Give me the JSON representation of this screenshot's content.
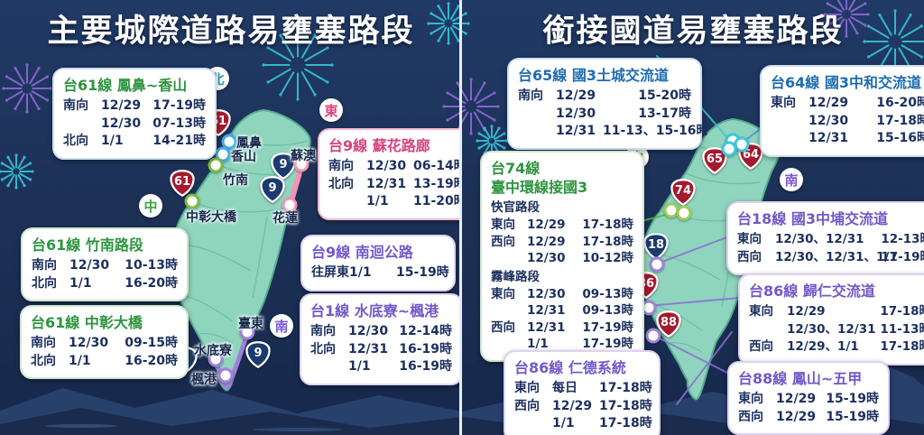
{
  "colors": {
    "background": "#1d3157",
    "map_fill": "#8fd4bd",
    "map_border": "#57ab92",
    "green_accent": "#2e9440",
    "magenta_accent": "#d6437e",
    "purple_accent": "#7258c8",
    "blue_accent": "#1f6cb0",
    "shield_red": "#a6192e",
    "shield_navy": "#1c3a6e",
    "badge_north": "#2a9db0",
    "badge_east": "#e0447e",
    "badge_center": "#3fa53f",
    "badge_south": "#7a5bd6",
    "body_text": "#1c2f5e",
    "fw_teal": "#35c5d8",
    "fw_purple": "#9168d8"
  },
  "left_panel": {
    "title": "主要城際道路易壅塞路段",
    "badges": {
      "north": "北",
      "east": "東",
      "center": "中",
      "south": "南"
    },
    "boxes": {
      "t61_fengbi": {
        "title": "台61線 鳳鼻~香山",
        "rows": [
          {
            "dir": "南向",
            "date": "12/29",
            "time": "17-19時"
          },
          {
            "dir": "",
            "date": "12/30",
            "time": "07-13時"
          },
          {
            "dir": "北向",
            "date": "1/1",
            "time": "14-21時"
          }
        ]
      },
      "t9_suhua": {
        "title": "台9線 蘇花路廊",
        "rows": [
          {
            "dir": "南向",
            "date": "12/30",
            "time": "06-14時"
          },
          {
            "dir": "北向",
            "date": "12/31",
            "time": "13-19時"
          },
          {
            "dir": "",
            "date": "1/1",
            "time": "11-20時"
          }
        ]
      },
      "t61_zhunan": {
        "title": "台61線 竹南路段",
        "rows": [
          {
            "dir": "南向",
            "date": "12/30",
            "time": "10-13時"
          },
          {
            "dir": "北向",
            "date": "1/1",
            "time": "16-20時"
          }
        ]
      },
      "t61_zhongzhang": {
        "title": "台61線 中彰大橋",
        "rows": [
          {
            "dir": "南向",
            "date": "12/30",
            "time": "09-15時"
          },
          {
            "dir": "北向",
            "date": "1/1",
            "time": "16-20時"
          }
        ]
      },
      "t9_nanhui": {
        "title": "台9線 南迴公路",
        "rows": [
          {
            "dir": "往屏東",
            "date": "1/1",
            "time": "15-19時"
          }
        ]
      },
      "t1_shuidiliao": {
        "title": "台1線 水底寮~楓港",
        "rows": [
          {
            "dir": "南向",
            "date": "12/30",
            "time": "12-14時"
          },
          {
            "dir": "北向",
            "date": "12/31",
            "time": "16-19時"
          },
          {
            "dir": "",
            "date": "1/1",
            "time": "16-19時"
          }
        ]
      }
    },
    "map": {
      "labels": {
        "fengbi": "鳳鼻",
        "xiangshan": "香山",
        "zhunan": "竹南",
        "zhongzhang": "中彰大橋",
        "suao": "蘇澳",
        "hualien": "花蓮",
        "taitung": "臺東",
        "shuidiliao": "水底寮",
        "fenggang": "楓港"
      },
      "shields": {
        "s61": "61",
        "s9": "9",
        "s1": "1"
      }
    }
  },
  "right_panel": {
    "title": "銜接國道易壅塞路段",
    "badges": {
      "north": "北",
      "center": "中",
      "south": "南"
    },
    "boxes": {
      "t65": {
        "title": "台65線 國3土城交流道",
        "rows": [
          {
            "dir": "南向",
            "date": "12/29",
            "time": "15-20時"
          },
          {
            "dir": "",
            "date": "12/30",
            "time": "13-17時"
          },
          {
            "dir": "",
            "date": "12/31",
            "time": "11-13、15-16時"
          }
        ]
      },
      "t64": {
        "title": "台64線 國3中和交流道",
        "rows": [
          {
            "dir": "東向",
            "date": "12/29",
            "time": "16-20時"
          },
          {
            "dir": "",
            "date": "12/30",
            "time": "17-18時"
          },
          {
            "dir": "",
            "date": "12/31",
            "time": "15-16時"
          }
        ]
      },
      "t74": {
        "title_line1": "台74線",
        "title_line2": "臺中環線接國3",
        "sections": [
          {
            "name": "快官路段",
            "rows": [
              {
                "dir": "東向",
                "date": "12/29",
                "time": "17-18時"
              },
              {
                "dir": "西向",
                "date": "12/29",
                "time": "17-18時"
              },
              {
                "dir": "",
                "date": "12/30",
                "time": "10-12時"
              }
            ]
          },
          {
            "name": "霧峰路段",
            "rows": [
              {
                "dir": "東向",
                "date": "12/30",
                "time": "09-13時"
              },
              {
                "dir": "",
                "date": "12/31",
                "time": "09-13時"
              },
              {
                "dir": "西向",
                "date": "12/31",
                "time": "17-19時"
              },
              {
                "dir": "",
                "date": "1/1",
                "time": "17-19時"
              }
            ]
          }
        ]
      },
      "t18": {
        "title": "台18線 國3中埔交流道",
        "rows": [
          {
            "dir": "東向",
            "date": "12/30、12/31",
            "time": "12-13時"
          },
          {
            "dir": "西向",
            "date": "12/30、12/31、1/1",
            "time": "17-19時"
          }
        ]
      },
      "t86_guiren": {
        "title": "台86線 歸仁交流道",
        "rows": [
          {
            "dir": "東向",
            "date": "12/29",
            "time": "17-18時"
          },
          {
            "dir": "",
            "date": "12/30、12/31",
            "time": "11-13時"
          },
          {
            "dir": "西向",
            "date": "12/29、1/1",
            "time": "17-18時"
          }
        ]
      },
      "t86_rende": {
        "title": "台86線 仁德系統",
        "rows": [
          {
            "dir": "東向",
            "date": "每日",
            "time": "17-18時"
          },
          {
            "dir": "西向",
            "date": "12/29",
            "time": "17-18時"
          },
          {
            "dir": "",
            "date": "1/1",
            "time": "17-18時"
          }
        ]
      },
      "t88": {
        "title": "台88線 鳳山~五甲",
        "rows": [
          {
            "dir": "東向",
            "date": "12/29",
            "time": "15-19時"
          },
          {
            "dir": "西向",
            "date": "12/29",
            "time": "15-19時"
          }
        ]
      }
    },
    "map": {
      "shields": {
        "s65": "65",
        "s64": "64",
        "s74": "74",
        "s18": "18",
        "s86": "86",
        "s88": "88"
      }
    }
  }
}
